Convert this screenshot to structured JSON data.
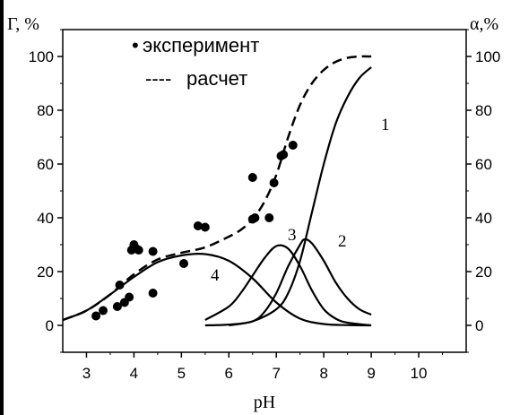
{
  "chart_data": {
    "type": "line",
    "xlabel": "pH",
    "ylabel_left": "Г, %",
    "ylabel_right": "α,%",
    "xlim": [
      2.5,
      11
    ],
    "ylim": [
      -10,
      110
    ],
    "xticks": [
      3,
      4,
      5,
      6,
      7,
      8,
      9,
      10
    ],
    "yticks": [
      0,
      20,
      40,
      60,
      80,
      100
    ],
    "grid": false,
    "legend_position": "top-left",
    "legend": [
      {
        "name": "эксперимент",
        "marker": "•"
      },
      {
        "name": "расчет",
        "marker": "----"
      }
    ],
    "series": [
      {
        "name": "эксперимент",
        "kind": "scatter",
        "x": [
          3.2,
          3.35,
          3.65,
          3.7,
          3.8,
          3.9,
          3.95,
          4.0,
          4.05,
          4.1,
          4.4,
          4.4,
          5.05,
          5.35,
          5.5,
          6.5,
          6.5,
          6.55,
          6.85,
          6.95,
          7.1,
          7.15,
          7.35
        ],
        "y": [
          3.5,
          5.5,
          7,
          15,
          8.5,
          10.5,
          28,
          30,
          28.5,
          28,
          27.5,
          12,
          23,
          37,
          36.5,
          55,
          39.5,
          40,
          40,
          53,
          63,
          63.5,
          67
        ]
      },
      {
        "name": "расчет",
        "kind": "line",
        "style": "dashed",
        "x": [
          2.5,
          3.0,
          3.5,
          4.0,
          4.5,
          5.0,
          5.5,
          6.0,
          6.25,
          6.5,
          6.75,
          7.0,
          7.25,
          7.5,
          7.75,
          8.0,
          8.25,
          8.5,
          8.75,
          9.0
        ],
        "y": [
          2,
          5.5,
          11.5,
          19,
          24.5,
          27,
          29,
          33,
          35.5,
          39.5,
          46,
          56,
          70,
          82,
          90,
          95,
          98,
          99.5,
          100,
          100
        ]
      },
      {
        "name": "1",
        "kind": "line",
        "style": "solid",
        "x": [
          5.5,
          6.0,
          6.5,
          7.0,
          7.25,
          7.5,
          7.75,
          8.0,
          8.25,
          8.5,
          8.75,
          9.0
        ],
        "y": [
          0,
          0.3,
          1.5,
          6,
          12,
          24,
          42,
          60,
          75,
          85,
          92,
          96
        ]
      },
      {
        "name": "2",
        "kind": "line",
        "style": "solid",
        "x": [
          6.0,
          6.5,
          6.75,
          7.0,
          7.25,
          7.5,
          7.6,
          7.75,
          8.0,
          8.25,
          8.5,
          8.75,
          9.0
        ],
        "y": [
          0,
          1.5,
          5,
          12,
          22,
          30,
          32,
          30.5,
          24,
          16,
          10,
          6,
          4
        ]
      },
      {
        "name": "3",
        "kind": "line",
        "style": "solid",
        "x": [
          5.5,
          6.0,
          6.25,
          6.5,
          6.75,
          7.0,
          7.25,
          7.5,
          7.75,
          8.0,
          8.25,
          8.5,
          9.0
        ],
        "y": [
          2,
          7,
          12,
          18.5,
          25,
          29.5,
          28.5,
          22,
          13,
          6,
          2.5,
          1,
          0
        ]
      },
      {
        "name": "4",
        "kind": "line",
        "style": "solid",
        "x": [
          2.5,
          3.0,
          3.5,
          4.0,
          4.5,
          5.0,
          5.5,
          6.0,
          6.5,
          7.0,
          7.5,
          8.0,
          8.5,
          9.0
        ],
        "y": [
          2,
          5.5,
          11.5,
          18,
          23.5,
          26,
          26.5,
          24,
          17.5,
          8.5,
          2.5,
          0.5,
          0.1,
          0
        ]
      }
    ]
  }
}
